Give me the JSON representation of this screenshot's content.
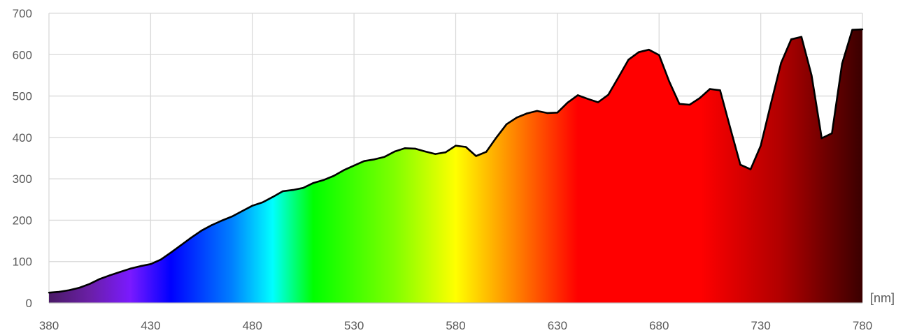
{
  "chart_data": {
    "type": "area",
    "title": "",
    "xlabel": "[nm]",
    "ylabel": "",
    "xlim": [
      380,
      780
    ],
    "ylim": [
      0,
      700
    ],
    "x_ticks": [
      "380",
      "430",
      "480",
      "530",
      "580",
      "630",
      "680",
      "730",
      "780"
    ],
    "y_ticks": [
      "0",
      "100",
      "200",
      "300",
      "400",
      "500",
      "600",
      "700"
    ],
    "grid": true,
    "legend": "none",
    "fill": "visible-spectrum gradient",
    "gradient_stops": [
      {
        "nm": 380,
        "color": "#4a1a66"
      },
      {
        "nm": 400,
        "color": "#6a1fa6"
      },
      {
        "nm": 420,
        "color": "#7a1aff"
      },
      {
        "nm": 440,
        "color": "#0000ff"
      },
      {
        "nm": 470,
        "color": "#0080ff"
      },
      {
        "nm": 490,
        "color": "#00ffff"
      },
      {
        "nm": 510,
        "color": "#00ff00"
      },
      {
        "nm": 550,
        "color": "#80ff00"
      },
      {
        "nm": 580,
        "color": "#ffff00"
      },
      {
        "nm": 610,
        "color": "#ff8000"
      },
      {
        "nm": 640,
        "color": "#ff0000"
      },
      {
        "nm": 700,
        "color": "#ff0000"
      },
      {
        "nm": 740,
        "color": "#b00000"
      },
      {
        "nm": 780,
        "color": "#3a0000"
      }
    ],
    "line_color": "#000000",
    "points": [
      [
        380,
        25
      ],
      [
        385,
        27
      ],
      [
        390,
        31
      ],
      [
        395,
        37
      ],
      [
        400,
        46
      ],
      [
        405,
        58
      ],
      [
        410,
        67
      ],
      [
        415,
        75
      ],
      [
        420,
        83
      ],
      [
        425,
        89
      ],
      [
        430,
        94
      ],
      [
        435,
        105
      ],
      [
        440,
        122
      ],
      [
        445,
        140
      ],
      [
        450,
        158
      ],
      [
        455,
        175
      ],
      [
        460,
        188
      ],
      [
        465,
        199
      ],
      [
        470,
        209
      ],
      [
        475,
        222
      ],
      [
        480,
        235
      ],
      [
        485,
        243
      ],
      [
        490,
        256
      ],
      [
        495,
        270
      ],
      [
        500,
        273
      ],
      [
        505,
        278
      ],
      [
        510,
        290
      ],
      [
        515,
        297
      ],
      [
        520,
        307
      ],
      [
        525,
        321
      ],
      [
        530,
        332
      ],
      [
        535,
        343
      ],
      [
        540,
        347
      ],
      [
        545,
        353
      ],
      [
        550,
        366
      ],
      [
        555,
        374
      ],
      [
        560,
        373
      ],
      [
        565,
        366
      ],
      [
        570,
        360
      ],
      [
        575,
        364
      ],
      [
        580,
        380
      ],
      [
        585,
        377
      ],
      [
        590,
        355
      ],
      [
        595,
        365
      ],
      [
        600,
        400
      ],
      [
        605,
        432
      ],
      [
        610,
        448
      ],
      [
        615,
        458
      ],
      [
        620,
        464
      ],
      [
        625,
        459
      ],
      [
        630,
        460
      ],
      [
        635,
        484
      ],
      [
        640,
        502
      ],
      [
        645,
        493
      ],
      [
        650,
        485
      ],
      [
        655,
        503
      ],
      [
        660,
        545
      ],
      [
        665,
        588
      ],
      [
        670,
        606
      ],
      [
        675,
        612
      ],
      [
        680,
        599
      ],
      [
        685,
        535
      ],
      [
        690,
        481
      ],
      [
        695,
        479
      ],
      [
        700,
        495
      ],
      [
        705,
        517
      ],
      [
        710,
        514
      ],
      [
        715,
        423
      ],
      [
        720,
        334
      ],
      [
        725,
        323
      ],
      [
        730,
        380
      ],
      [
        735,
        482
      ],
      [
        740,
        580
      ],
      [
        745,
        637
      ],
      [
        750,
        643
      ],
      [
        755,
        550
      ],
      [
        760,
        398
      ],
      [
        765,
        410
      ],
      [
        770,
        578
      ],
      [
        775,
        660
      ],
      [
        780,
        661
      ]
    ]
  }
}
